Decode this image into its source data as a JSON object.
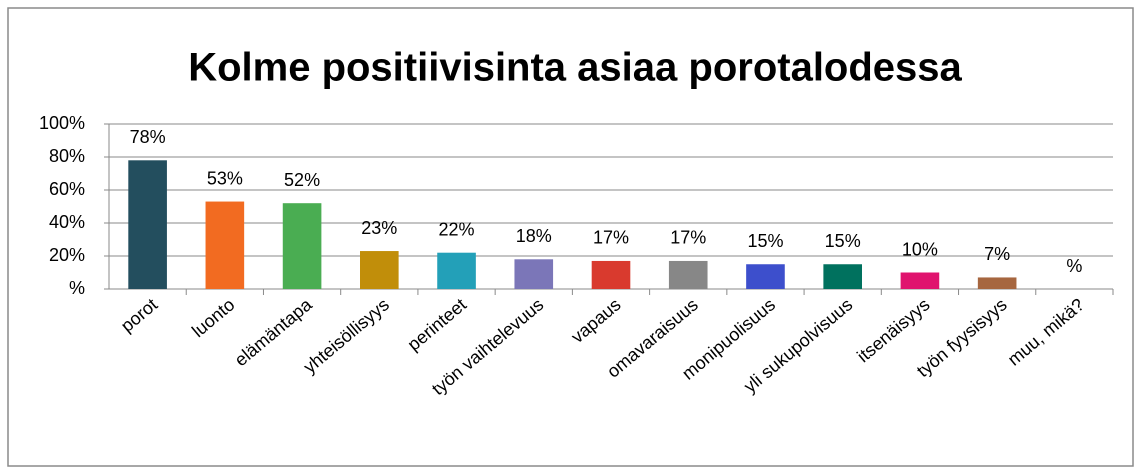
{
  "chart_data": {
    "type": "bar",
    "title": "Kolme positiivisinta asiaa porotalodessa",
    "categories": [
      "porot",
      "luonto",
      "elämäntapa",
      "yhteisöllisyys",
      "perinteet",
      "työn vaihtelevuus",
      "vapaus",
      "omavaraisuus",
      "monipuolisuus",
      "yli sukupolvisuus",
      "itsenäisyys",
      "työn fyysisyys",
      "muu, mikä?"
    ],
    "values": [
      78,
      53,
      52,
      23,
      22,
      18,
      17,
      17,
      15,
      15,
      10,
      7,
      0
    ],
    "value_labels": [
      "78%",
      "53%",
      "52%",
      "23%",
      "22%",
      "18%",
      "17%",
      "17%",
      "15%",
      "15%",
      "10%",
      "7%",
      "%"
    ],
    "colors": [
      "#234e5e",
      "#f26b21",
      "#4aad52",
      "#c18e0a",
      "#23a0b8",
      "#7b76b8",
      "#d93a2e",
      "#878787",
      "#3d4fcc",
      "#00715e",
      "#e0136e",
      "#a6663f",
      "#888888"
    ],
    "ylim": [
      0,
      100
    ],
    "yticks": [
      {
        "value": 0,
        "label": "%"
      },
      {
        "value": 20,
        "label": "20%"
      },
      {
        "value": 40,
        "label": "40%"
      },
      {
        "value": 60,
        "label": "60%"
      },
      {
        "value": 80,
        "label": "80%"
      },
      {
        "value": 100,
        "label": "100%"
      }
    ],
    "grid": true
  }
}
